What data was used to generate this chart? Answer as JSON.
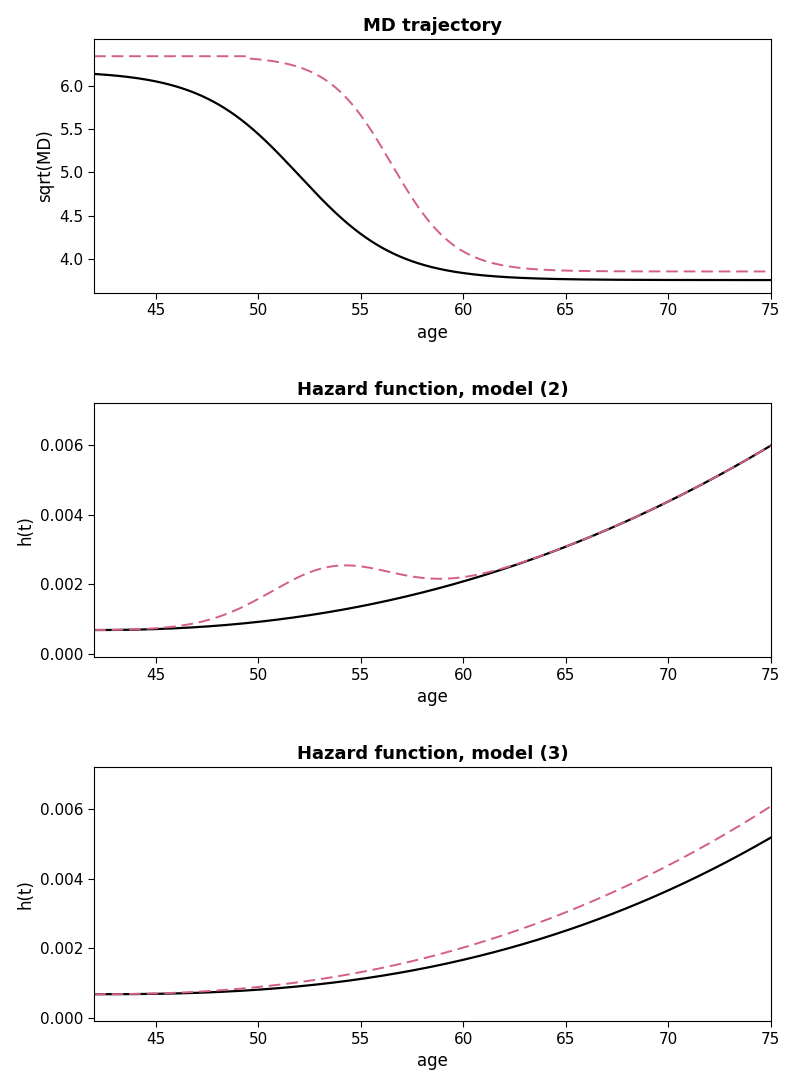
{
  "title1": "MD trajectory",
  "title2": "Hazard function, model (2)",
  "title3": "Hazard function, model (3)",
  "xlabel": "age",
  "ylabel1": "sqrt(MD)",
  "ylabel2": "h(t)",
  "ylabel3": "h(t)",
  "age_min": 42,
  "age_max": 75,
  "bg_color": "#ffffff",
  "line_black": "#000000",
  "line_pink": "#d46080",
  "plot1_ylim_lo": 3.6,
  "plot1_ylim_hi": 6.55,
  "plot2_ylim_lo": -0.0001,
  "plot2_ylim_hi": 0.0072,
  "plot3_ylim_lo": -0.0001,
  "plot3_ylim_hi": 0.0072,
  "plot1_yticks": [
    4.0,
    4.5,
    5.0,
    5.5,
    6.0
  ],
  "plot23_yticks": [
    0.0,
    0.002,
    0.004,
    0.006
  ],
  "xticks": [
    45,
    50,
    55,
    60,
    65,
    70,
    75
  ]
}
